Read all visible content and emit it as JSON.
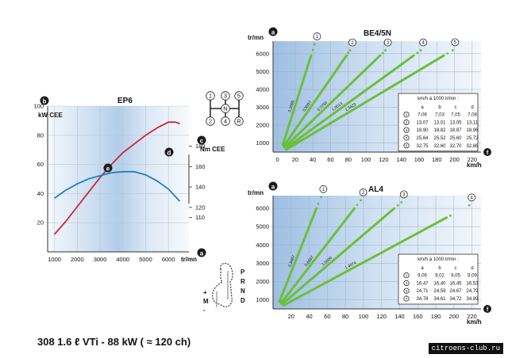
{
  "caption": "308 1.6 ℓ VTi - 88 kW ( ≈ 120 ch)",
  "watermark": "citroens-club.ru",
  "chart_data": [
    {
      "type": "line",
      "title": "EP6",
      "xlabel": "tr/mn",
      "ylabel_left": "kW CEE",
      "ylabel_right": "Nm CEE",
      "markers": {
        "left": "b",
        "right": "c",
        "x": "a",
        "power_curve": "d",
        "torque_curve": "e"
      },
      "xlim": [
        700,
        6900
      ],
      "xticks": [
        1000,
        2000,
        3000,
        4000,
        5000,
        6000
      ],
      "ylim_left": [
        0,
        100
      ],
      "yticks_left": [
        20,
        40,
        60,
        80,
        100
      ],
      "ylim_right": [
        76.4,
        219.3
      ],
      "yticks_right": [
        110,
        120,
        140,
        160,
        180
      ],
      "series": [
        {
          "name": "power",
          "axis": "left",
          "color": "#c8283c",
          "x": [
            1000,
            1500,
            2000,
            2500,
            3000,
            3500,
            4000,
            4500,
            5000,
            5500,
            6000,
            6300,
            6500
          ],
          "values": [
            12,
            21,
            31,
            41,
            51,
            60,
            68,
            74,
            80,
            85,
            89,
            89,
            88
          ]
        },
        {
          "name": "torque",
          "axis": "right",
          "color": "#1e7fc0",
          "x": [
            1000,
            1500,
            2000,
            2500,
            3000,
            3500,
            4000,
            4500,
            5000,
            5500,
            6000,
            6500
          ],
          "values": [
            129,
            137,
            143,
            148,
            151,
            154,
            155,
            155,
            152,
            146,
            138,
            126
          ]
        }
      ]
    },
    {
      "type": "line",
      "title": "BE4/5N",
      "marker": "a",
      "xlabel": "km/h",
      "ylabel": "tr/mn",
      "xlim": [
        -5,
        230
      ],
      "xticks": [
        0,
        20,
        40,
        60,
        80,
        100,
        120,
        140,
        160,
        180,
        200,
        220
      ],
      "xtick_labels": [
        "0",
        "20",
        "40",
        "60",
        "80",
        "100",
        "120",
        "140",
        "160",
        "180",
        "200",
        "220"
      ],
      "ylim": [
        500,
        6700
      ],
      "yticks": [
        1000,
        2000,
        3000,
        4000,
        5000,
        6000
      ],
      "series": [
        {
          "gear": "1",
          "ratio": "0,2695",
          "x": [
            6,
            38
          ],
          "values": [
            900,
            5900
          ],
          "dots": [
            40,
            42
          ]
        },
        {
          "gear": "2",
          "ratio": "0,5057",
          "x": [
            7,
            78
          ],
          "values": [
            820,
            5900
          ],
          "dots": [
            80,
            82
          ]
        },
        {
          "gear": "3",
          "ratio": "0,7750",
          "x": [
            8,
            116
          ],
          "values": [
            760,
            5900
          ],
          "dots": [
            119,
            122
          ]
        },
        {
          "gear": "4",
          "ratio": "1,0513",
          "x": [
            9,
            154
          ],
          "values": [
            700,
            5900
          ],
          "dots": [
            158,
            162
          ]
        },
        {
          "gear": "5",
          "ratio": "1,3429",
          "x": [
            10,
            188
          ],
          "values": [
            640,
            5900
          ],
          "dots": [
            192,
            198
          ]
        }
      ],
      "table": {
        "header": "km/h à 1000 tr/mn :",
        "columns": [
          "a",
          "b",
          "c",
          "d"
        ],
        "rows": [
          {
            "gear": "1",
            "values": [
              "7,06",
              "7,03",
              "7,05",
              "7,08"
            ]
          },
          {
            "gear": "2",
            "values": [
              "13,07",
              "13,01",
              "13,05",
              "13,11"
            ]
          },
          {
            "gear": "3",
            "values": [
              "18,90",
              "18,82",
              "18,87",
              "18,96"
            ]
          },
          {
            "gear": "4",
            "values": [
              "25,64",
              "25,52",
              "25,60",
              "25,72"
            ]
          },
          {
            "gear": "5",
            "values": [
              "32,75",
              "32,60",
              "32,70",
              "32,86"
            ]
          }
        ]
      }
    },
    {
      "type": "line",
      "title": "AL4",
      "marker": "a",
      "xlabel": "km/h",
      "ylabel": "tr/mn",
      "xlim": [
        0,
        230
      ],
      "xticks": [
        20,
        40,
        60,
        80,
        100,
        120,
        140,
        160,
        180,
        200,
        220
      ],
      "xtick_labels": [
        "20",
        "40",
        "60",
        "80",
        "100",
        "120",
        "140",
        "160",
        "180",
        "200",
        "220"
      ],
      "ylim": [
        500,
        6700
      ],
      "yticks": [
        1000,
        2000,
        3000,
        4000,
        5000,
        6000
      ],
      "series": [
        {
          "gear": "1",
          "ratio": "0,3467",
          "x": [
            7,
            48
          ],
          "values": [
            900,
            6000
          ],
          "dots": [
            50,
            53
          ]
        },
        {
          "gear": "2",
          "ratio": "0,6587",
          "x": [
            9,
            90
          ],
          "values": [
            820,
            6000
          ],
          "dots": [
            93,
            97
          ]
        },
        {
          "gear": "3",
          "ratio": "1,0000",
          "x": [
            10,
            134
          ],
          "values": [
            760,
            6000
          ],
          "dots": [
            138,
            142
          ]
        },
        {
          "gear": "4",
          "ratio": "1,4074",
          "x": [
            12,
            192
          ],
          "values": [
            700,
            5500
          ],
          "dots": [
            196,
            217
          ]
        }
      ],
      "table": {
        "header": "km/h à 1000 tr/mn :",
        "columns": [
          "a",
          "b",
          "c",
          "d"
        ],
        "rows": [
          {
            "gear": "1",
            "values": [
              "9,06",
              "9,02",
              "9,05",
              "9,09"
            ]
          },
          {
            "gear": "2",
            "values": [
              "16,47",
              "16,40",
              "16,45",
              "16,53"
            ]
          },
          {
            "gear": "3",
            "values": [
              "24,71",
              "24,59",
              "24,67",
              "24,79"
            ]
          },
          {
            "gear": "4",
            "values": [
              "34,78",
              "34,61",
              "34,72",
              "34,89"
            ]
          }
        ]
      }
    }
  ],
  "manual_shift_pattern": [
    "1",
    "3",
    "5",
    "N",
    "2",
    "4",
    "R"
  ],
  "auto_selector": {
    "positions": [
      "P",
      "R",
      "N",
      "D"
    ],
    "manual_labels": [
      "+",
      "M",
      "-"
    ]
  }
}
